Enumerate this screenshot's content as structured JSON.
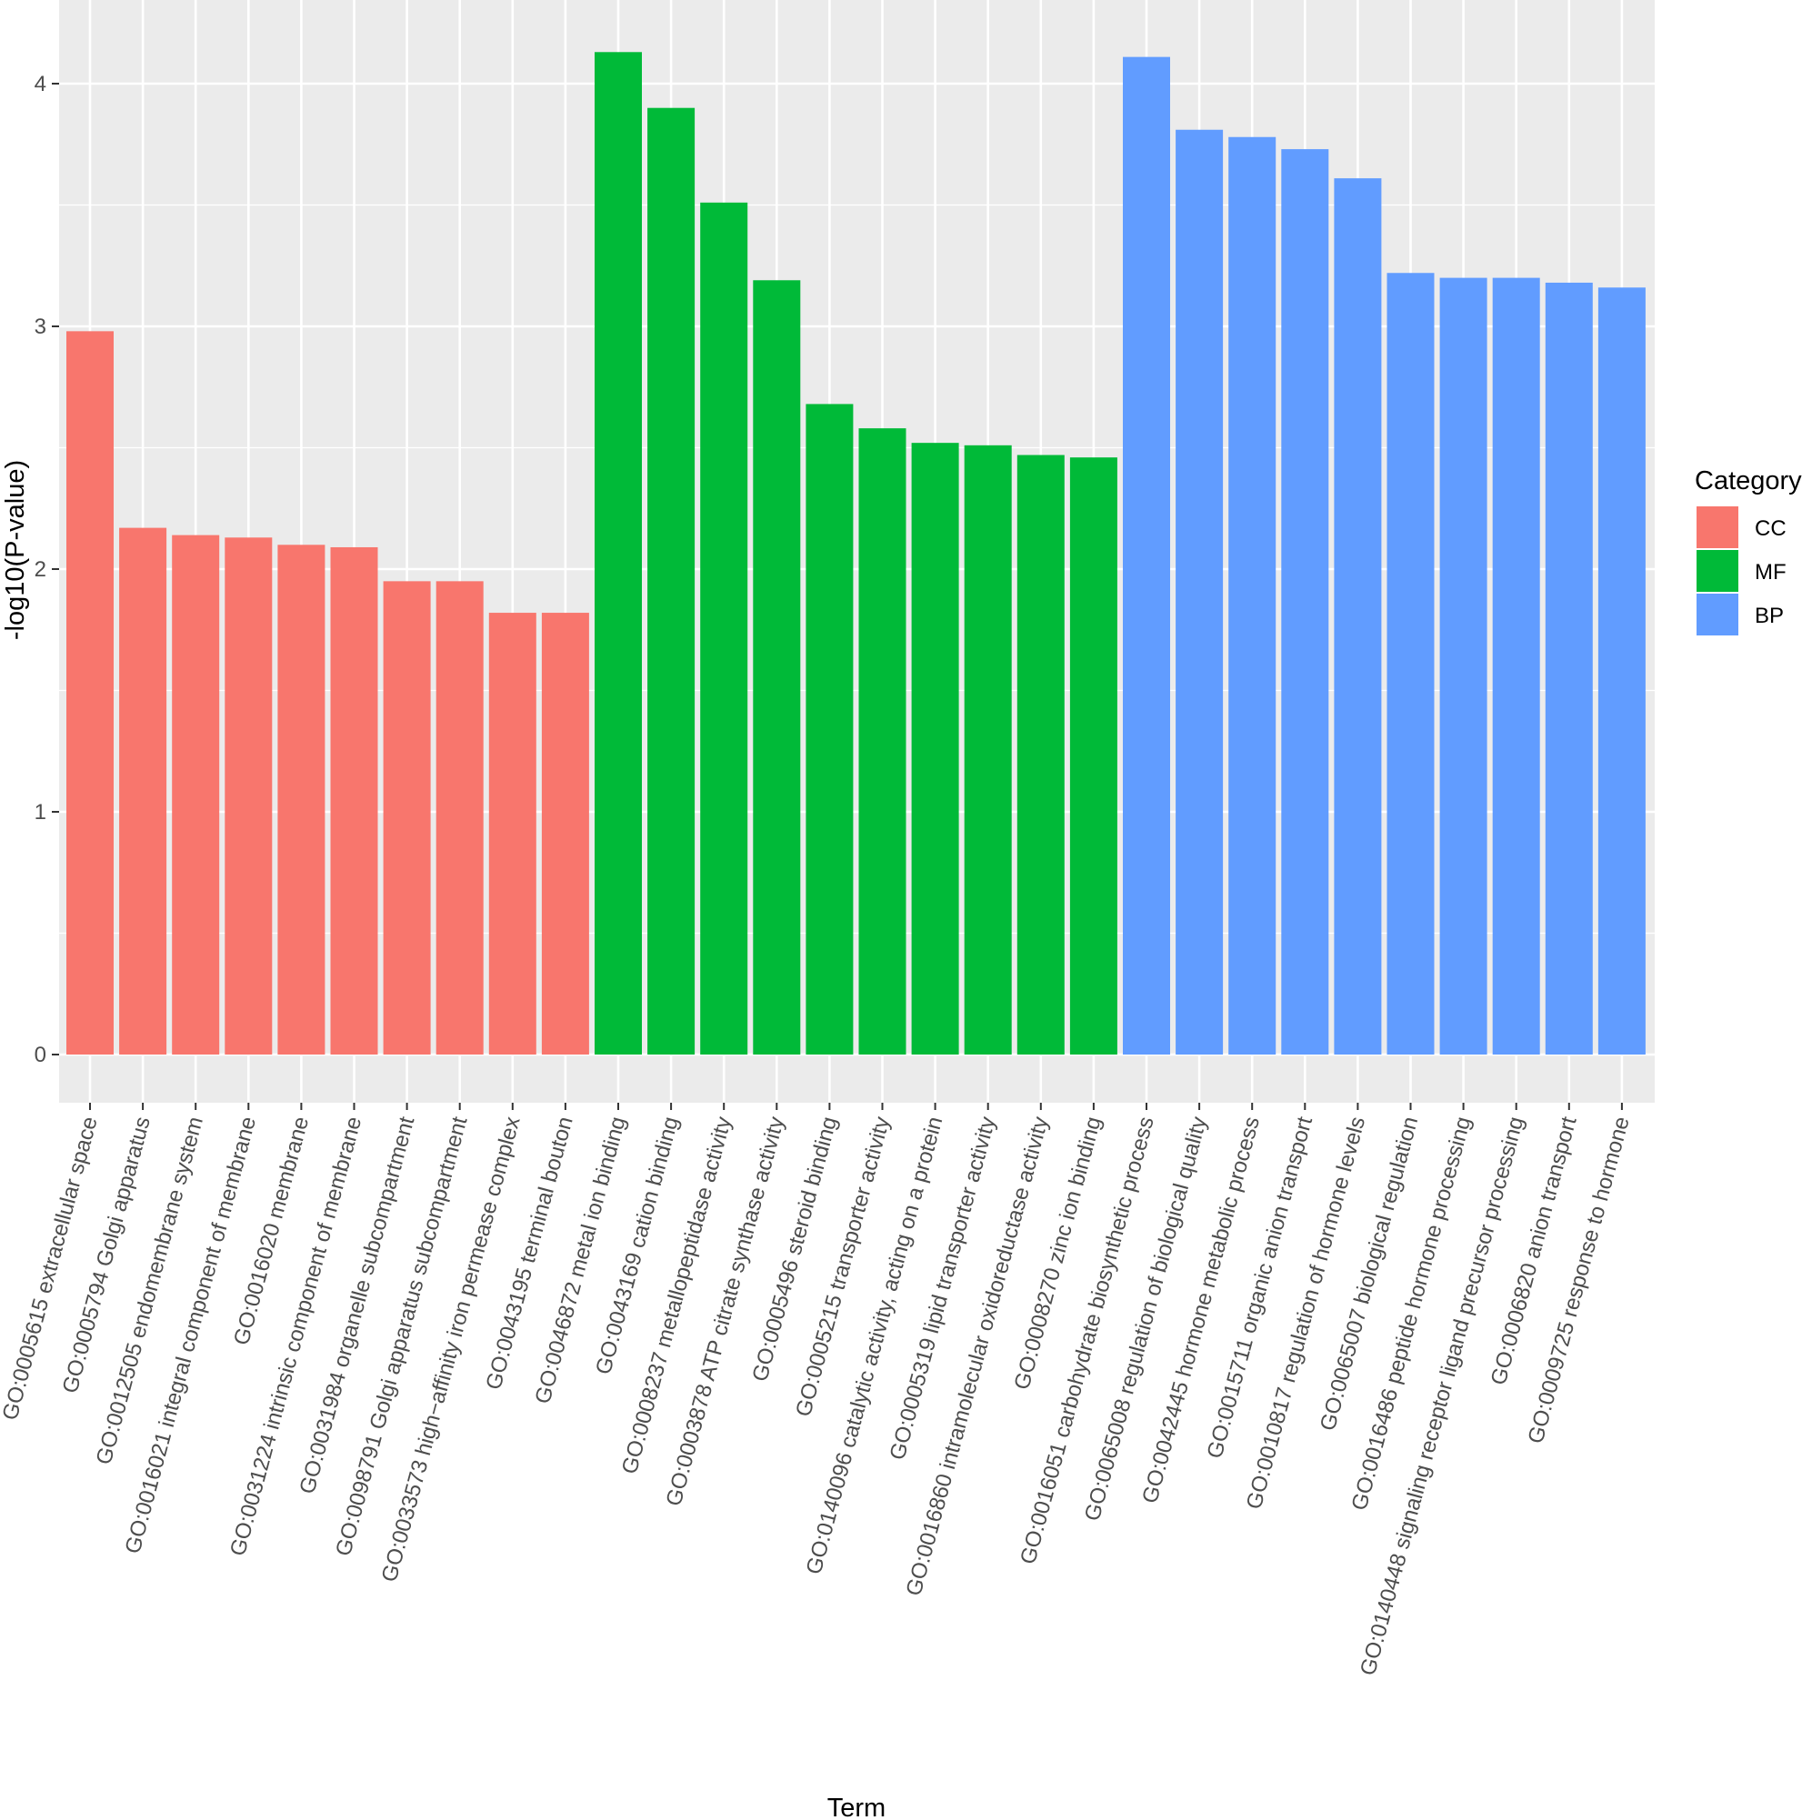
{
  "chart_data": {
    "type": "bar",
    "xlabel": "Term",
    "ylabel": "-log10(P-value)",
    "ylim": [
      -0.2,
      4.3
    ],
    "yticks": [
      "0",
      "1",
      "2",
      "3",
      "4"
    ],
    "grid": true,
    "legend": {
      "title": "Category",
      "position": "right",
      "entries": [
        {
          "key": "CC",
          "label": "CC",
          "color": "#F8766D"
        },
        {
          "key": "MF",
          "label": "MF",
          "color": "#00BA38"
        },
        {
          "key": "BP",
          "label": "BP",
          "color": "#619CFF"
        }
      ]
    },
    "colors": {
      "panel": "#EBEBEB",
      "grid_major": "#FFFFFF",
      "tick": "#333333"
    },
    "bars": [
      {
        "term": "GO:0005615 extracellular space",
        "category": "CC",
        "value": 2.98
      },
      {
        "term": "GO:0005794 Golgi apparatus",
        "category": "CC",
        "value": 2.17
      },
      {
        "term": "GO:0012505 endomembrane system",
        "category": "CC",
        "value": 2.14
      },
      {
        "term": "GO:0016021 integral component of membrane",
        "category": "CC",
        "value": 2.13
      },
      {
        "term": "GO:0016020 membrane",
        "category": "CC",
        "value": 2.1
      },
      {
        "term": "GO:0031224 intrinsic component of membrane",
        "category": "CC",
        "value": 2.09
      },
      {
        "term": "GO:0031984 organelle subcompartment",
        "category": "CC",
        "value": 1.95
      },
      {
        "term": "GO:0098791 Golgi apparatus subcompartment",
        "category": "CC",
        "value": 1.95
      },
      {
        "term": "GO:0033573 high−affinity iron permease complex",
        "category": "CC",
        "value": 1.82
      },
      {
        "term": "GO:0043195 terminal bouton",
        "category": "CC",
        "value": 1.82
      },
      {
        "term": "GO:0046872 metal ion binding",
        "category": "MF",
        "value": 4.13
      },
      {
        "term": "GO:0043169 cation binding",
        "category": "MF",
        "value": 3.9
      },
      {
        "term": "GO:0008237 metallopeptidase activity",
        "category": "MF",
        "value": 3.51
      },
      {
        "term": "GO:0003878 ATP citrate synthase activity",
        "category": "MF",
        "value": 3.19
      },
      {
        "term": "GO:0005496 steroid binding",
        "category": "MF",
        "value": 2.68
      },
      {
        "term": "GO:0005215 transporter activity",
        "category": "MF",
        "value": 2.58
      },
      {
        "term": "GO:0140096 catalytic activity, acting on a protein",
        "category": "MF",
        "value": 2.52
      },
      {
        "term": "GO:0005319 lipid transporter activity",
        "category": "MF",
        "value": 2.51
      },
      {
        "term": "GO:0016860 intramolecular oxidoreductase activity",
        "category": "MF",
        "value": 2.47
      },
      {
        "term": "GO:0008270 zinc ion binding",
        "category": "MF",
        "value": 2.46
      },
      {
        "term": "GO:0016051 carbohydrate biosynthetic process",
        "category": "BP",
        "value": 4.11
      },
      {
        "term": "GO:0065008 regulation of biological quality",
        "category": "BP",
        "value": 3.81
      },
      {
        "term": "GO:0042445 hormone metabolic process",
        "category": "BP",
        "value": 3.78
      },
      {
        "term": "GO:0015711 organic anion transport",
        "category": "BP",
        "value": 3.73
      },
      {
        "term": "GO:0010817 regulation of hormone levels",
        "category": "BP",
        "value": 3.61
      },
      {
        "term": "GO:0065007 biological regulation",
        "category": "BP",
        "value": 3.22
      },
      {
        "term": "GO:0016486 peptide hormone processing",
        "category": "BP",
        "value": 3.2
      },
      {
        "term": "GO:0140448 signaling receptor ligand precursor processing",
        "category": "BP",
        "value": 3.2
      },
      {
        "term": "GO:0006820 anion transport",
        "category": "BP",
        "value": 3.18
      },
      {
        "term": "GO:0009725 response to hormone",
        "category": "BP",
        "value": 3.16
      }
    ]
  }
}
